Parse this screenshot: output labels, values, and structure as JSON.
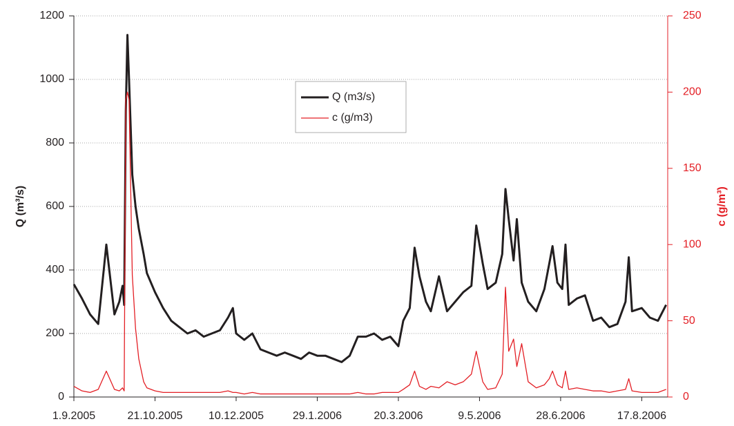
{
  "chart_data": {
    "type": "line",
    "y_label": "Q  (m³/s)",
    "y2_label": "c (g/m³)",
    "x": [
      "1.9.2005",
      "6.9.2005",
      "11.9.2005",
      "16.9.2005",
      "21.9.2005",
      "26.9.2005",
      "29.9.2005",
      "1.10.2005",
      "2.10.2005",
      "3.10.2005",
      "4.10.2005",
      "5.10.2005",
      "7.10.2005",
      "9.10.2005",
      "11.10.2005",
      "14.10.2005",
      "16.10.2005",
      "21.10.2005",
      "26.10.2005",
      "31.10.2005",
      "5.11.2005",
      "10.11.2005",
      "15.11.2005",
      "20.11.2005",
      "25.11.2005",
      "30.11.2005",
      "5.12.2005",
      "8.12.2005",
      "10.12.2005",
      "15.12.2005",
      "20.12.2005",
      "25.12.2005",
      "30.12.2005",
      "4.1.2006",
      "9.1.2006",
      "14.1.2006",
      "19.1.2006",
      "24.1.2006",
      "29.1.2006",
      "3.2.2006",
      "8.2.2006",
      "13.2.2006",
      "18.2.2006",
      "23.2.2006",
      "28.2.2006",
      "5.3.2006",
      "10.3.2006",
      "15.3.2006",
      "20.3.2006",
      "23.3.2006",
      "27.3.2006",
      "30.3.2006",
      "2.4.2006",
      "6.4.2006",
      "9.4.2006",
      "14.4.2006",
      "19.4.2006",
      "24.4.2006",
      "29.4.2006",
      "4.5.2006",
      "7.5.2006",
      "11.5.2006",
      "14.5.2006",
      "19.5.2006",
      "23.5.2006",
      "25.5.2006",
      "27.5.2006",
      "30.5.2006",
      "1.6.2006",
      "4.6.2006",
      "8.6.2006",
      "13.6.2006",
      "18.6.2006",
      "21.6.2006",
      "23.6.2006",
      "26.6.2006",
      "29.6.2006",
      "1.7.2006",
      "3.7.2006",
      "8.7.2006",
      "13.7.2006",
      "18.7.2006",
      "23.7.2006",
      "28.7.2006",
      "2.8.2006",
      "7.8.2006",
      "9.8.2006",
      "11.8.2006",
      "17.8.2006",
      "22.8.2006",
      "27.8.2006",
      "1.9.2006"
    ],
    "series": [
      {
        "name": "Q  (m3/s)",
        "color": "#231f20",
        "width": 3,
        "values": [
          355,
          310,
          260,
          230,
          480,
          260,
          300,
          350,
          290,
          900,
          1140,
          1000,
          700,
          600,
          530,
          450,
          390,
          330,
          280,
          240,
          220,
          200,
          210,
          190,
          200,
          210,
          250,
          280,
          200,
          180,
          200,
          150,
          140,
          130,
          140,
          130,
          120,
          140,
          130,
          130,
          120,
          110,
          130,
          190,
          190,
          200,
          180,
          190,
          160,
          240,
          280,
          470,
          380,
          300,
          270,
          380,
          270,
          300,
          330,
          350,
          540,
          420,
          340,
          360,
          450,
          655,
          560,
          430,
          560,
          360,
          300,
          270,
          340,
          420,
          475,
          360,
          340,
          480,
          290,
          310,
          320,
          240,
          250,
          220,
          230,
          300,
          440,
          270,
          280,
          250,
          240,
          290
        ]
      },
      {
        "name": "c (g/m3)",
        "color": "#e31e24",
        "width": 1.3,
        "axis": "y2",
        "values": [
          7,
          4,
          3,
          5,
          17,
          5,
          4,
          6,
          4,
          195,
          200,
          195,
          80,
          45,
          25,
          10,
          6,
          4,
          3,
          3,
          3,
          3,
          3,
          3,
          3,
          3,
          4,
          3,
          3,
          2,
          3,
          2,
          2,
          2,
          2,
          2,
          2,
          2,
          2,
          2,
          2,
          2,
          2,
          3,
          2,
          2,
          3,
          3,
          3,
          5,
          8,
          17,
          7,
          5,
          7,
          6,
          10,
          8,
          10,
          15,
          30,
          10,
          5,
          6,
          15,
          72,
          30,
          38,
          20,
          35,
          10,
          6,
          8,
          12,
          17,
          8,
          6,
          17,
          5,
          6,
          5,
          4,
          4,
          3,
          4,
          5,
          12,
          4,
          3,
          3,
          3,
          5
        ]
      }
    ],
    "xlim": [
      "1.9.2005",
      "2.9.2006"
    ],
    "xticks": [
      "1.9.2005",
      "21.10.2005",
      "10.12.2005",
      "29.1.2006",
      "20.3.2006",
      "9.5.2006",
      "28.6.2006",
      "17.8.2006"
    ],
    "ylim": [
      0,
      1200
    ],
    "yticks": [
      0,
      200,
      400,
      600,
      800,
      1000,
      1200
    ],
    "y2lim": [
      0,
      250
    ],
    "y2ticks": [
      0,
      50,
      100,
      150,
      200,
      250
    ],
    "grid": true
  }
}
